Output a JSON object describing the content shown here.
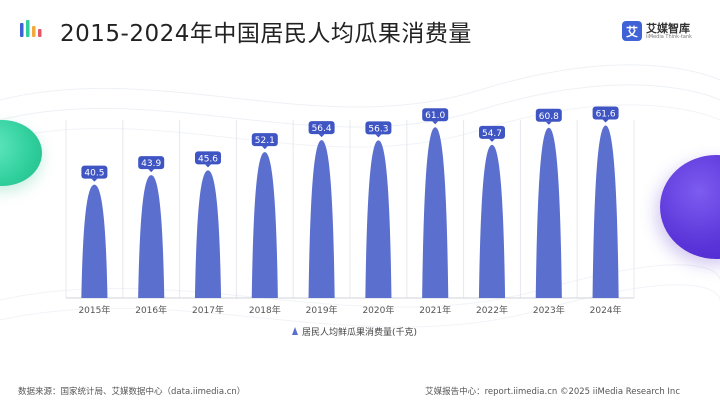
{
  "header": {
    "title": "2015-2024年中国居民人均瓜果消费量",
    "brand_name": "艾媒智库",
    "brand_mark": "艾",
    "brand_sub": "iiMedia Think-tank"
  },
  "footer": {
    "source": "数据来源：国家统计局、艾媒数据中心（data.iimedia.cn）",
    "credit": "艾媒报告中心：report.iimedia.cn ©2025 iiMedia Research Inc"
  },
  "colors": {
    "bar": "#5b6fcf",
    "label_bg": "#3f55c4",
    "accent_green": "#2fcf9c",
    "accent_purple": "#5a34d8"
  },
  "chart_data": {
    "type": "bar",
    "bar_shape": "bell",
    "title": "2015-2024年中国居民人均瓜果消费量",
    "categories": [
      "2015年",
      "2016年",
      "2017年",
      "2018年",
      "2019年",
      "2020年",
      "2021年",
      "2022年",
      "2023年",
      "2024年"
    ],
    "series": [
      {
        "name": "居民人均鲜瓜果消费量(千克)",
        "values": [
          40.5,
          43.9,
          45.6,
          52.1,
          56.4,
          56.3,
          61.0,
          54.7,
          60.8,
          61.6
        ]
      }
    ],
    "value_labels": [
      "40.5",
      "43.9",
      "45.6",
      "52.1",
      "56.4",
      "56.3",
      "61.0",
      "54.7",
      "60.8",
      "61.6"
    ],
    "ylim": [
      0,
      70
    ],
    "grid": "vertical",
    "legend_position": "bottom-center"
  }
}
